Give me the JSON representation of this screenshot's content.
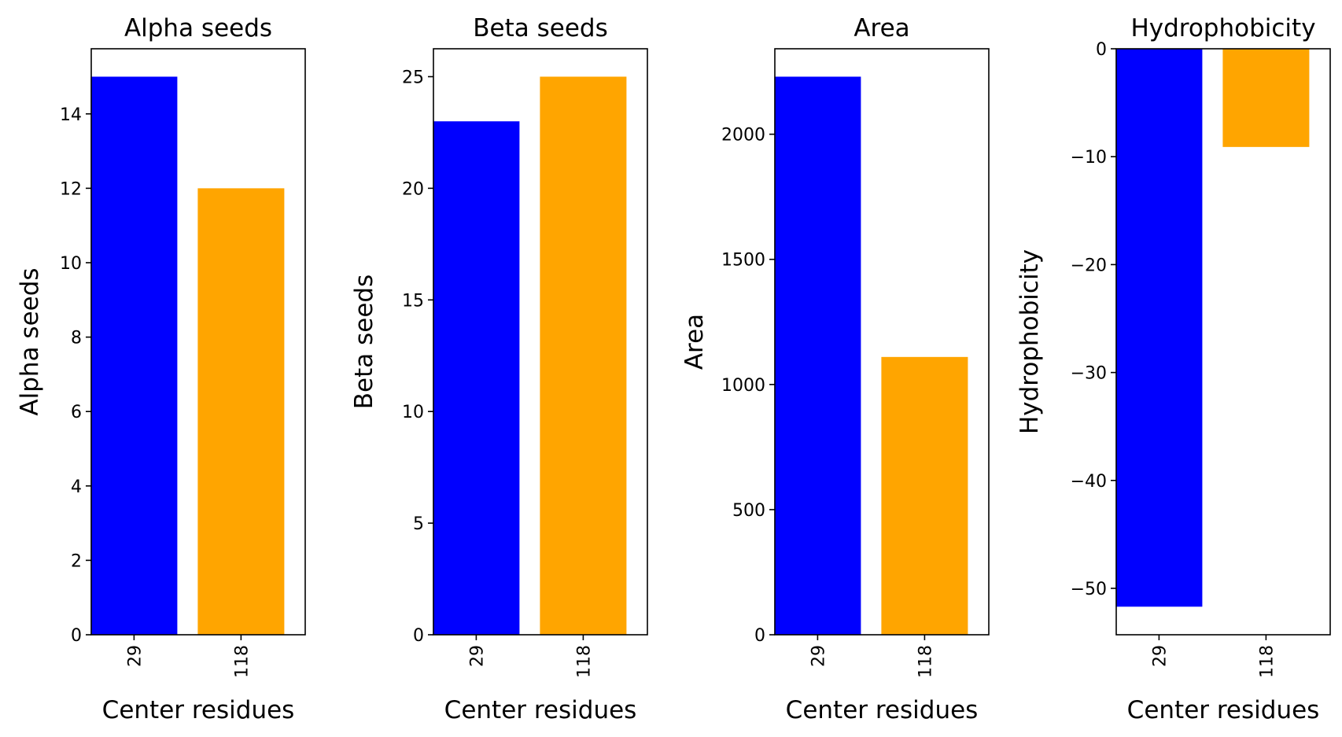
{
  "chart_data": [
    {
      "type": "bar",
      "title": "Alpha seeds",
      "xlabel": "Center residues",
      "ylabel": "Alpha seeds",
      "categories": [
        "29",
        "118"
      ],
      "values": [
        15,
        12
      ],
      "colors": [
        "#0000ff",
        "#ffa500"
      ],
      "ylim": [
        0,
        15.75
      ],
      "yticks": [
        0,
        2,
        4,
        6,
        8,
        10,
        12,
        14
      ],
      "ytick_labels": [
        "0",
        "2",
        "4",
        "6",
        "8",
        "10",
        "12",
        "14"
      ]
    },
    {
      "type": "bar",
      "title": "Beta seeds",
      "xlabel": "Center residues",
      "ylabel": "Beta seeds",
      "categories": [
        "29",
        "118"
      ],
      "values": [
        23,
        25
      ],
      "colors": [
        "#0000ff",
        "#ffa500"
      ],
      "ylim": [
        0,
        26.25
      ],
      "yticks": [
        0,
        5,
        10,
        15,
        20,
        25
      ],
      "ytick_labels": [
        "0",
        "5",
        "10",
        "15",
        "20",
        "25"
      ]
    },
    {
      "type": "bar",
      "title": "Area",
      "xlabel": "Center residues",
      "ylabel": "Area",
      "categories": [
        "29",
        "118"
      ],
      "values": [
        2230,
        1110
      ],
      "colors": [
        "#0000ff",
        "#ffa500"
      ],
      "ylim": [
        0,
        2341.5
      ],
      "yticks": [
        0,
        500,
        1000,
        1500,
        2000
      ],
      "ytick_labels": [
        "0",
        "500",
        "1000",
        "1500",
        "2000"
      ]
    },
    {
      "type": "bar",
      "title": "Hydrophobicity",
      "xlabel": "Center residues",
      "ylabel": "Hydrophobicity",
      "categories": [
        "29",
        "118"
      ],
      "values": [
        -51.7,
        -9.1
      ],
      "colors": [
        "#0000ff",
        "#ffa500"
      ],
      "ylim": [
        -54.3,
        0
      ],
      "yticks": [
        -50,
        -40,
        -30,
        -20,
        -10,
        0
      ],
      "ytick_labels": [
        "−50",
        "−40",
        "−30",
        "−20",
        "−10",
        "0"
      ]
    }
  ]
}
